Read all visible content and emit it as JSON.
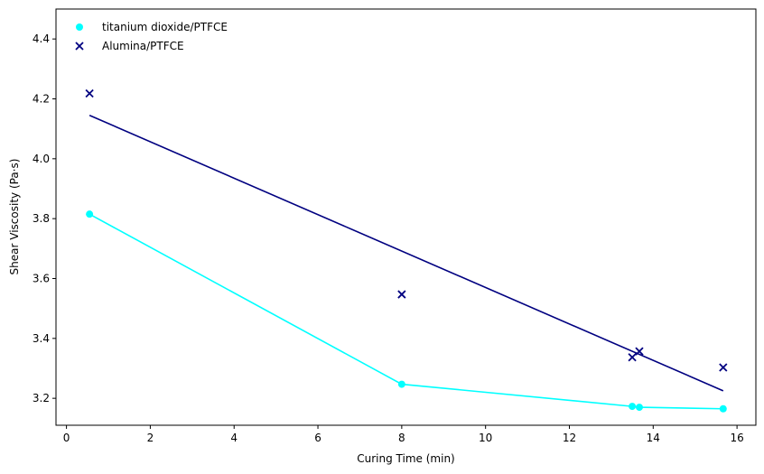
{
  "chart_data": {
    "type": "scatter",
    "xlabel": "Curing Time (min)",
    "ylabel": "Shear Viscosity (Pa·s)",
    "xlim": [
      -0.25,
      16.45
    ],
    "ylim": [
      3.11,
      4.5
    ],
    "xticks": [
      0,
      2,
      4,
      6,
      8,
      10,
      12,
      14,
      16
    ],
    "yticks": [
      3.2,
      3.4,
      3.6,
      3.8,
      4.0,
      4.2,
      4.4
    ],
    "xtick_labels": [
      "0",
      "2",
      "4",
      "6",
      "8",
      "10",
      "12",
      "14",
      "16"
    ],
    "ytick_labels": [
      "3.2",
      "3.4",
      "3.6",
      "3.8",
      "4.0",
      "4.2",
      "4.4"
    ],
    "grid": false,
    "legend_position": "top-left",
    "series": [
      {
        "name": "titanium dioxide/PTFCE",
        "marker": "circle",
        "color": "#00ffff",
        "points": [
          {
            "x": 0.55,
            "y": 3.815
          },
          {
            "x": 8.0,
            "y": 3.247
          },
          {
            "x": 13.5,
            "y": 3.173
          },
          {
            "x": 13.67,
            "y": 3.17
          },
          {
            "x": 15.67,
            "y": 3.165
          }
        ],
        "line": {
          "type": "connected",
          "points": [
            {
              "x": 0.55,
              "y": 3.815
            },
            {
              "x": 8.0,
              "y": 3.247
            },
            {
              "x": 13.5,
              "y": 3.173
            },
            {
              "x": 13.67,
              "y": 3.17
            },
            {
              "x": 15.67,
              "y": 3.165
            }
          ]
        }
      },
      {
        "name": "Alumina/PTFCE",
        "marker": "x",
        "color": "#000080",
        "points": [
          {
            "x": 0.55,
            "y": 4.218
          },
          {
            "x": 8.0,
            "y": 3.547
          },
          {
            "x": 13.5,
            "y": 3.337
          },
          {
            "x": 13.67,
            "y": 3.357
          },
          {
            "x": 15.67,
            "y": 3.303
          }
        ],
        "line": {
          "type": "fit",
          "points": [
            {
              "x": 0.55,
              "y": 4.145
            },
            {
              "x": 15.67,
              "y": 3.225
            }
          ]
        }
      }
    ]
  }
}
